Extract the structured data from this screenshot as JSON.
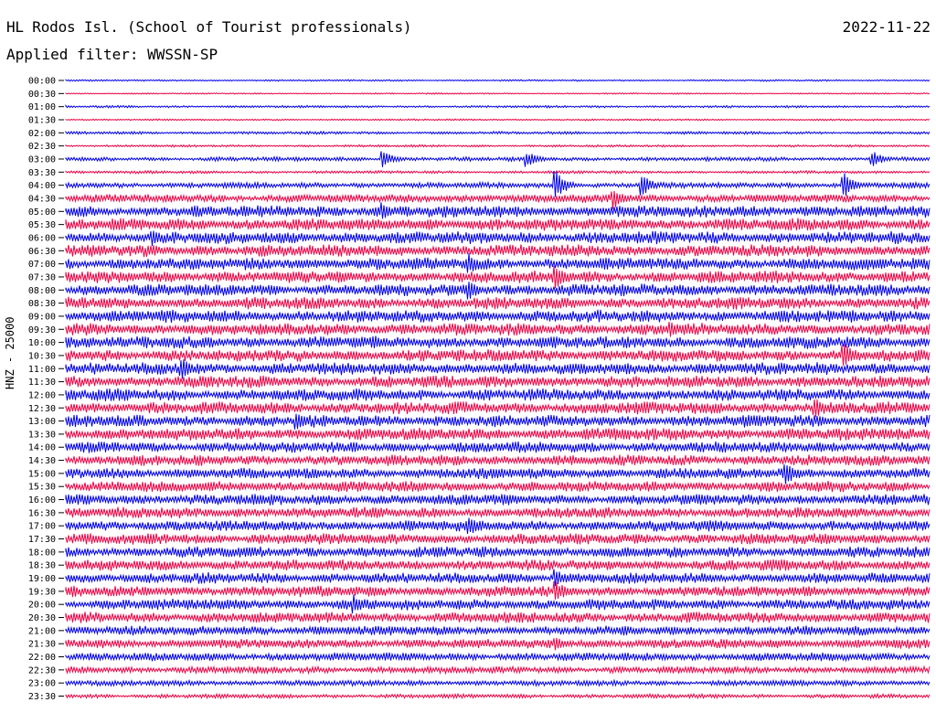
{
  "header": {
    "station": "HL Rodos Isl. (School of Tourist professionals)",
    "date": "2022-11-22",
    "filter": "Applied filter: WWSSN-SP"
  },
  "channel_label": "HNZ - 25000",
  "colors": {
    "trace_a": "#0000ee",
    "trace_b": "#ee0044"
  },
  "chart_data": {
    "type": "line",
    "title": "HL Rodos Isl. (School of Tourist professionals)",
    "subtitle": "Applied filter: WWSSN-SP",
    "ylabel": "HNZ - 25000",
    "row_labels": [
      "00:00",
      "00:30",
      "01:00",
      "01:30",
      "02:00",
      "02:30",
      "03:00",
      "03:30",
      "04:00",
      "04:30",
      "05:00",
      "05:30",
      "06:00",
      "06:30",
      "07:00",
      "07:30",
      "08:00",
      "08:30",
      "09:00",
      "09:30",
      "10:00",
      "10:30",
      "11:00",
      "11:30",
      "12:00",
      "12:30",
      "13:00",
      "13:30",
      "14:00",
      "14:30",
      "15:00",
      "15:30",
      "16:00",
      "16:30",
      "17:00",
      "17:30",
      "18:00",
      "18:30",
      "19:00",
      "19:30",
      "20:00",
      "20:30",
      "21:00",
      "21:30",
      "22:00",
      "22:30",
      "23:00",
      "23:30"
    ],
    "row_colors": [
      "trace_a",
      "trace_b"
    ],
    "row_noise_amplitude": [
      0.6,
      0.5,
      0.8,
      0.6,
      1.0,
      0.8,
      1.5,
      1.0,
      2.0,
      3.0,
      4.5,
      4.5,
      4.5,
      4.5,
      4.5,
      4.5,
      4.5,
      4.5,
      4.5,
      4.5,
      4.5,
      4.5,
      4.5,
      4.5,
      4.5,
      4.5,
      4.5,
      4.5,
      4.0,
      4.0,
      4.0,
      4.0,
      4.0,
      4.0,
      4.0,
      4.0,
      4.0,
      4.0,
      4.0,
      4.0,
      4.0,
      4.0,
      3.5,
      3.5,
      3.0,
      2.5,
      2.0,
      1.5
    ],
    "events": [
      {
        "row": 6,
        "minute": 11,
        "amp": 10
      },
      {
        "row": 6,
        "minute": 16,
        "amp": 9
      },
      {
        "row": 6,
        "minute": 28,
        "amp": 9
      },
      {
        "row": 8,
        "minute": 17,
        "amp": 16
      },
      {
        "row": 8,
        "minute": 20,
        "amp": 12
      },
      {
        "row": 8,
        "minute": 27,
        "amp": 14
      },
      {
        "row": 9,
        "minute": 19,
        "amp": 12
      },
      {
        "row": 10,
        "minute": 11,
        "amp": 11
      },
      {
        "row": 12,
        "minute": 3,
        "amp": 10
      },
      {
        "row": 14,
        "minute": 14,
        "amp": 12
      },
      {
        "row": 15,
        "minute": 17,
        "amp": 14
      },
      {
        "row": 16,
        "minute": 14,
        "amp": 11
      },
      {
        "row": 19,
        "minute": 21,
        "amp": 10
      },
      {
        "row": 21,
        "minute": 27,
        "amp": 15
      },
      {
        "row": 22,
        "minute": 4,
        "amp": 13
      },
      {
        "row": 25,
        "minute": 26,
        "amp": 12
      },
      {
        "row": 26,
        "minute": 8,
        "amp": 12
      },
      {
        "row": 30,
        "minute": 25,
        "amp": 13
      },
      {
        "row": 34,
        "minute": 14,
        "amp": 11
      },
      {
        "row": 38,
        "minute": 17,
        "amp": 11
      },
      {
        "row": 39,
        "minute": 17,
        "amp": 13
      },
      {
        "row": 40,
        "minute": 10,
        "amp": 11
      },
      {
        "row": 43,
        "minute": 17,
        "amp": 9
      }
    ],
    "xlim_minutes": [
      0,
      30
    ],
    "grid": false
  }
}
